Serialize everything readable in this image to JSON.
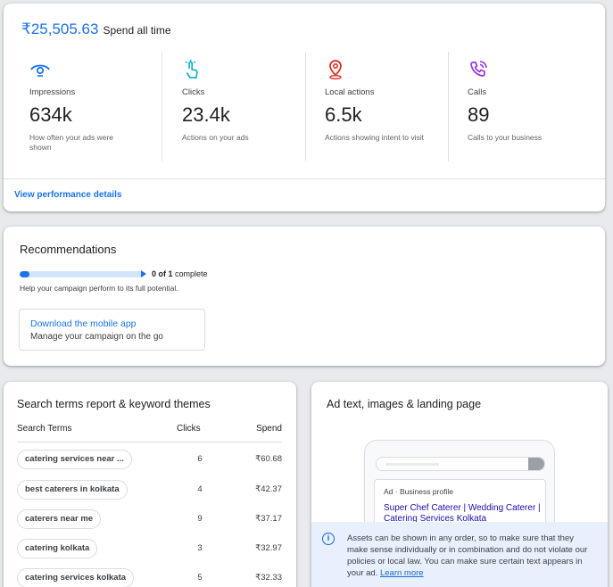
{
  "colors": {
    "accent": "#1a73e8",
    "local": "#d93025",
    "calls": "#9334e6",
    "clicks": "#12b5cb"
  },
  "summary": {
    "spend_amount": "₹25,505.63",
    "spend_label": "Spend all time"
  },
  "metrics": [
    {
      "icon": "eye-icon",
      "name": "Impressions",
      "value": "634k",
      "desc": "How often your ads were shown"
    },
    {
      "icon": "tap-icon",
      "name": "Clicks",
      "value": "23.4k",
      "desc": "Actions on your ads"
    },
    {
      "icon": "location-pin-icon",
      "name": "Local actions",
      "value": "6.5k",
      "desc": "Actions showing intent to visit"
    },
    {
      "icon": "phone-call-icon",
      "name": "Calls",
      "value": "89",
      "desc": "Calls to your business"
    }
  ],
  "view_performance_label": "View performance details",
  "recommendations": {
    "title": "Recommendations",
    "progress_fraction": 0.08,
    "progress_count": "0 of 1",
    "progress_suffix": "complete",
    "help": "Help your campaign perform to its full potential.",
    "item_title": "Download the mobile app",
    "item_subtitle": "Manage your campaign on the go"
  },
  "search_terms": {
    "title": "Search terms report & keyword themes",
    "columns": {
      "term": "Search Terms",
      "clicks": "Clicks",
      "spend": "Spend"
    },
    "rows": [
      {
        "term": "catering services near ...",
        "clicks": "6",
        "spend": "₹60.68"
      },
      {
        "term": "best caterers in kolkata",
        "clicks": "4",
        "spend": "₹42.37"
      },
      {
        "term": "caterers near me",
        "clicks": "9",
        "spend": "₹37.17"
      },
      {
        "term": "catering kolkata",
        "clicks": "3",
        "spend": "₹32.97"
      },
      {
        "term": "catering services kolkata",
        "clicks": "5",
        "spend": "₹32.33"
      }
    ]
  },
  "ad_card": {
    "title": "Ad text, images & landing page",
    "ad_label": "Ad · Business profile",
    "ad_headline": "Super Chef Caterer | Wedding Caterer | Catering Services Kolkata",
    "info_text": "Assets can be shown in any order, so to make sure that they make sense individually or in combination and do not violate our policies or local law. You can make sure certain text appears in your ad.",
    "learn_more": "Learn more"
  }
}
